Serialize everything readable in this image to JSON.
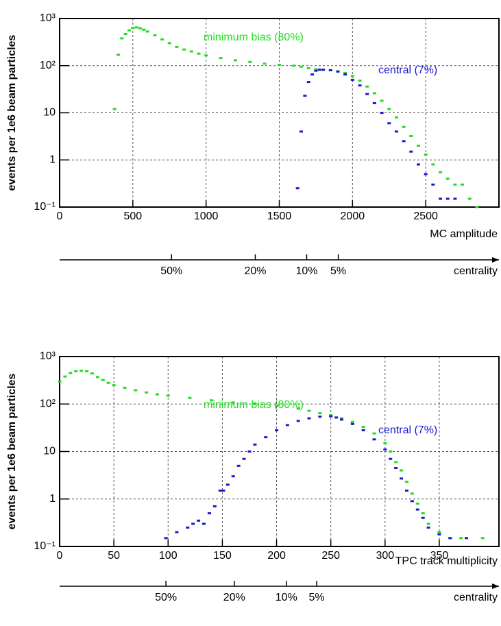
{
  "chart_data": [
    {
      "type": "scatter",
      "log_y": true,
      "grid": true,
      "x_label": "MC amplitude",
      "y_label": "events per 1e6 beam particles",
      "xlim": [
        0,
        3000
      ],
      "ylim": [
        0.1,
        1000
      ],
      "xticks": [
        0,
        500,
        1000,
        1500,
        2000,
        2500
      ],
      "yticks": [
        {
          "value": 0.1,
          "label": "10⁻¹"
        },
        1,
        10,
        {
          "value": 100,
          "label": "10²"
        },
        {
          "value": 1000,
          "label": "10³"
        }
      ],
      "series": [
        {
          "name": "minimum bias (80%)",
          "color": "#22dd22",
          "x": [
            375,
            400,
            425,
            450,
            475,
            500,
            525,
            550,
            575,
            600,
            650,
            700,
            750,
            800,
            850,
            900,
            950,
            1000,
            1100,
            1200,
            1300,
            1400,
            1500,
            1600,
            1650,
            1700,
            1750,
            1800,
            1850,
            1900,
            1950,
            2000,
            2050,
            2100,
            2150,
            2200,
            2250,
            2300,
            2350,
            2400,
            2450,
            2500,
            2550,
            2600,
            2650,
            2700,
            2750,
            2800,
            2850
          ],
          "values": [
            12,
            170,
            380,
            470,
            560,
            630,
            650,
            620,
            580,
            530,
            440,
            360,
            300,
            250,
            220,
            200,
            180,
            165,
            145,
            130,
            120,
            110,
            104,
            100,
            95,
            88,
            84,
            82,
            80,
            76,
            70,
            60,
            48,
            36,
            26,
            18,
            12,
            8,
            5,
            3.2,
            2,
            1.3,
            0.8,
            0.55,
            0.4,
            0.3,
            0.3,
            0.15,
            0.1
          ]
        },
        {
          "name": "central (7%)",
          "color": "#1a1acc",
          "x": [
            1625,
            1650,
            1675,
            1700,
            1725,
            1750,
            1775,
            1800,
            1850,
            1900,
            1950,
            2000,
            2050,
            2100,
            2150,
            2200,
            2250,
            2300,
            2350,
            2400,
            2450,
            2500,
            2550,
            2600,
            2650,
            2700
          ],
          "values": [
            0.25,
            4,
            23,
            45,
            65,
            78,
            82,
            82,
            80,
            75,
            65,
            50,
            38,
            25,
            16,
            10,
            6,
            4,
            2.5,
            1.5,
            0.8,
            0.5,
            0.3,
            0.15,
            0.15,
            0.15
          ]
        }
      ],
      "centrality": {
        "label": "centrality",
        "ticks": [
          {
            "value": 764,
            "label": "50%"
          },
          {
            "value": 1336,
            "label": "20%"
          },
          {
            "value": 1687,
            "label": "10%"
          },
          {
            "value": 1903,
            "label": "5%"
          }
        ]
      }
    },
    {
      "type": "scatter",
      "log_y": true,
      "grid": true,
      "x_label": "TPC track multiplicity",
      "y_label": "events per 1e6 beam particles",
      "xlim": [
        0,
        405
      ],
      "ylim": [
        0.1,
        1000
      ],
      "xticks": [
        0,
        50,
        100,
        150,
        200,
        250,
        300,
        350
      ],
      "yticks": [
        {
          "value": 0.1,
          "label": "10⁻¹"
        },
        1,
        10,
        {
          "value": 100,
          "label": "10²"
        },
        {
          "value": 1000,
          "label": "10³"
        }
      ],
      "series": [
        {
          "name": "minimum bias (80%)",
          "color": "#22dd22",
          "x": [
            0,
            5,
            10,
            15,
            20,
            25,
            30,
            35,
            40,
            45,
            50,
            60,
            70,
            80,
            90,
            100,
            120,
            140,
            160,
            180,
            200,
            220,
            230,
            240,
            250,
            260,
            270,
            280,
            290,
            300,
            305,
            310,
            315,
            320,
            325,
            330,
            335,
            340,
            350,
            360,
            370,
            390
          ],
          "values": [
            300,
            380,
            450,
            490,
            500,
            490,
            440,
            370,
            320,
            280,
            250,
            220,
            195,
            175,
            160,
            150,
            135,
            120,
            108,
            100,
            92,
            80,
            72,
            64,
            58,
            50,
            42,
            33,
            24,
            15,
            10,
            6,
            4,
            2.3,
            1.3,
            0.8,
            0.5,
            0.3,
            0.2,
            0.15,
            0.15,
            0.15
          ]
        },
        {
          "name": "central (7%)",
          "color": "#1a1acc",
          "x": [
            98,
            108,
            118,
            123,
            128,
            133,
            138,
            143,
            148,
            151,
            155,
            160,
            165,
            170,
            175,
            180,
            190,
            200,
            210,
            220,
            230,
            240,
            250,
            255,
            260,
            270,
            280,
            290,
            300,
            305,
            310,
            315,
            320,
            325,
            330,
            335,
            340,
            350,
            360,
            375
          ],
          "values": [
            0.15,
            0.2,
            0.25,
            0.3,
            0.35,
            0.3,
            0.5,
            0.7,
            1.5,
            1.5,
            2,
            3,
            5,
            7,
            10,
            14,
            20,
            28,
            36,
            44,
            50,
            54,
            55,
            52,
            47,
            38,
            28,
            18,
            11,
            7,
            4.5,
            2.7,
            1.5,
            0.9,
            0.6,
            0.4,
            0.25,
            0.18,
            0.15,
            0.15
          ]
        }
      ],
      "centrality": {
        "label": "centrality",
        "ticks": [
          {
            "value": 98,
            "label": "50%"
          },
          {
            "value": 161,
            "label": "20%"
          },
          {
            "value": 209,
            "label": "10%"
          },
          {
            "value": 237,
            "label": "5%"
          }
        ]
      }
    }
  ]
}
